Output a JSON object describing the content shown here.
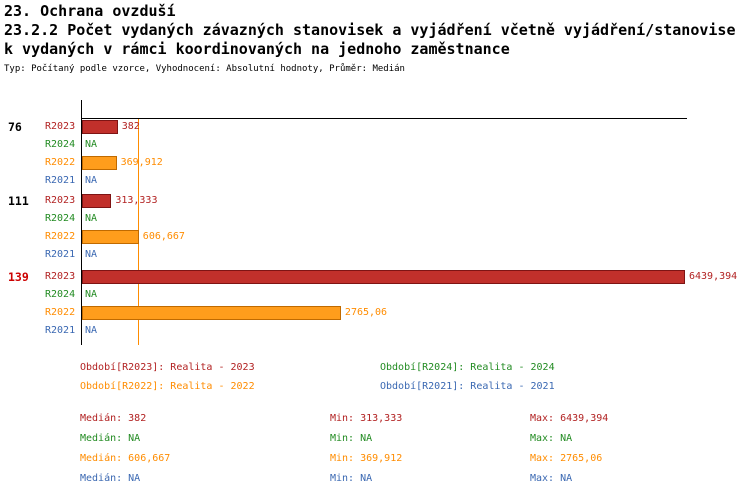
{
  "header": {
    "title": "23. Ochrana ovzduší",
    "subtitle_line1": "23.2.2 Počet vydaných závazných stanovisek a vyjádření včetně vyjádření/stanovise",
    "subtitle_line2": "k vydaných v rámci koordinovaných na jednoho zaměstnance",
    "meta": "Typ: Počítaný podle vzorce, Vyhodnocení: Absolutní hodnoty, Průměr: Medián"
  },
  "colors": {
    "r2023": "#b22222",
    "r2023_fill": "#c1302b",
    "r2023_border": "#7e1414",
    "r2024": "#228b22",
    "r2022": "#ff8c00",
    "r2022_fill": "#ff9d1c",
    "r2022_border": "#c06a00",
    "r2021": "#3a68b2",
    "highlight": "#cc0000",
    "axis": "#000000"
  },
  "chart_data": {
    "type": "bar",
    "orientation": "horizontal",
    "axis_max": 6439.394,
    "grid": false,
    "median_line": {
      "series": "r2022",
      "value": 606.667
    },
    "groups": [
      {
        "label": "76",
        "highlight": false,
        "rows": [
          {
            "period": "R2023",
            "series": "r2023",
            "value": 382,
            "label": "382"
          },
          {
            "period": "R2024",
            "series": "r2024",
            "value": null,
            "label": "NA"
          },
          {
            "period": "R2022",
            "series": "r2022",
            "value": 369.912,
            "label": "369,912"
          },
          {
            "period": "R2021",
            "series": "r2021",
            "value": null,
            "label": "NA"
          }
        ]
      },
      {
        "label": "111",
        "highlight": false,
        "rows": [
          {
            "period": "R2023",
            "series": "r2023",
            "value": 313.333,
            "label": "313,333"
          },
          {
            "period": "R2024",
            "series": "r2024",
            "value": null,
            "label": "NA"
          },
          {
            "period": "R2022",
            "series": "r2022",
            "value": 606.667,
            "label": "606,667"
          },
          {
            "period": "R2021",
            "series": "r2021",
            "value": null,
            "label": "NA"
          }
        ]
      },
      {
        "label": "139",
        "highlight": true,
        "rows": [
          {
            "period": "R2023",
            "series": "r2023",
            "value": 6439.394,
            "label": "6439,394"
          },
          {
            "period": "R2024",
            "series": "r2024",
            "value": null,
            "label": "NA"
          },
          {
            "period": "R2022",
            "series": "r2022",
            "value": 2765.06,
            "label": "2765,06"
          },
          {
            "period": "R2021",
            "series": "r2021",
            "value": null,
            "label": "NA"
          }
        ]
      }
    ]
  },
  "legend": [
    {
      "series": "r2023",
      "text": "Období[R2023]: Realita - 2023"
    },
    {
      "series": "r2024",
      "text": "Období[R2024]: Realita - 2024"
    },
    {
      "series": "r2022",
      "text": "Období[R2022]: Realita - 2022"
    },
    {
      "series": "r2021",
      "text": "Období[R2021]: Realita - 2021"
    }
  ],
  "stats": [
    {
      "series": "r2023",
      "median": "Medián: 382",
      "min": "Min: 313,333",
      "max": "Max: 6439,394"
    },
    {
      "series": "r2024",
      "median": "Medián: NA",
      "min": "Min: NA",
      "max": "Max: NA"
    },
    {
      "series": "r2022",
      "median": "Medián: 606,667",
      "min": "Min: 369,912",
      "max": "Max: 2765,06"
    },
    {
      "series": "r2021",
      "median": "Medián: NA",
      "min": "Min: NA",
      "max": "Max: NA"
    }
  ]
}
